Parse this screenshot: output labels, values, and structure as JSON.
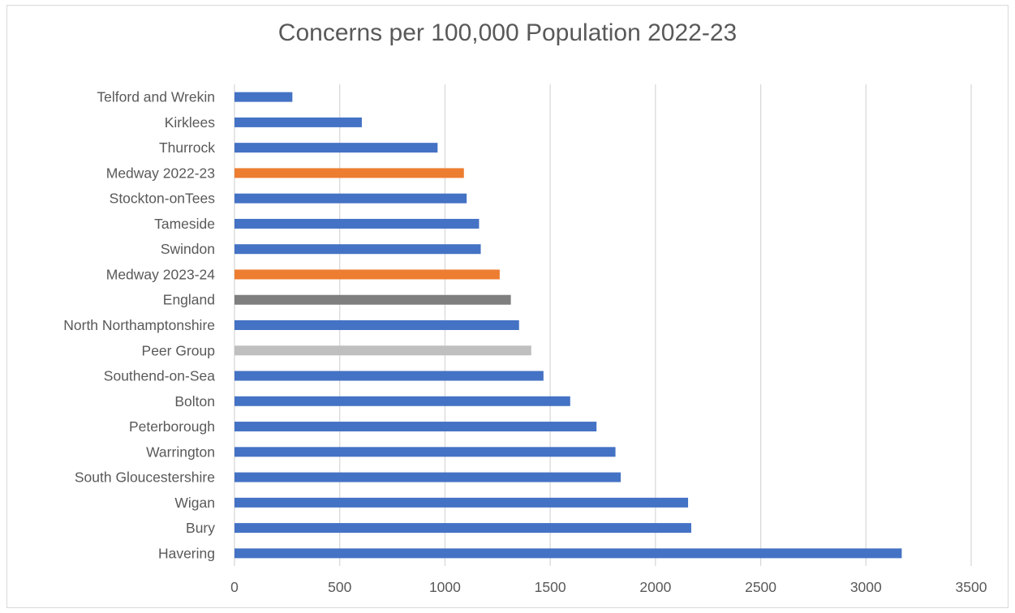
{
  "chart_data": {
    "type": "bar",
    "orientation": "horizontal",
    "title": "Concerns per 100,000 Population 2022-23",
    "xlabel": "",
    "ylabel": "",
    "xlim": [
      0,
      3500
    ],
    "xticks": [
      0,
      500,
      1000,
      1500,
      2000,
      2500,
      3000,
      3500
    ],
    "grid": true,
    "legend": "none",
    "categories": [
      "Havering",
      "Bury",
      "Wigan",
      "South Gloucestershire",
      "Warrington",
      "Peterborough",
      "Bolton",
      "Southend-on-Sea",
      "Peer Group",
      "North Northamptonshire",
      "England",
      "Medway 2023-24",
      "Swindon",
      "Tameside",
      "Stockton-onTees",
      "Medway 2022-23",
      "Thurrock",
      "Kirklees",
      "Telford and Wrekin"
    ],
    "values": [
      3170,
      2170,
      2155,
      1835,
      1810,
      1720,
      1595,
      1468,
      1410,
      1352,
      1313,
      1260,
      1170,
      1162,
      1103,
      1090,
      965,
      605,
      275
    ],
    "bar_colors": [
      "#4472c4",
      "#4472c4",
      "#4472c4",
      "#4472c4",
      "#4472c4",
      "#4472c4",
      "#4472c4",
      "#4472c4",
      "#bfbfbf",
      "#4472c4",
      "#7f7f7f",
      "#ed7d31",
      "#4472c4",
      "#4472c4",
      "#4472c4",
      "#ed7d31",
      "#4472c4",
      "#4472c4",
      "#4472c4"
    ]
  }
}
